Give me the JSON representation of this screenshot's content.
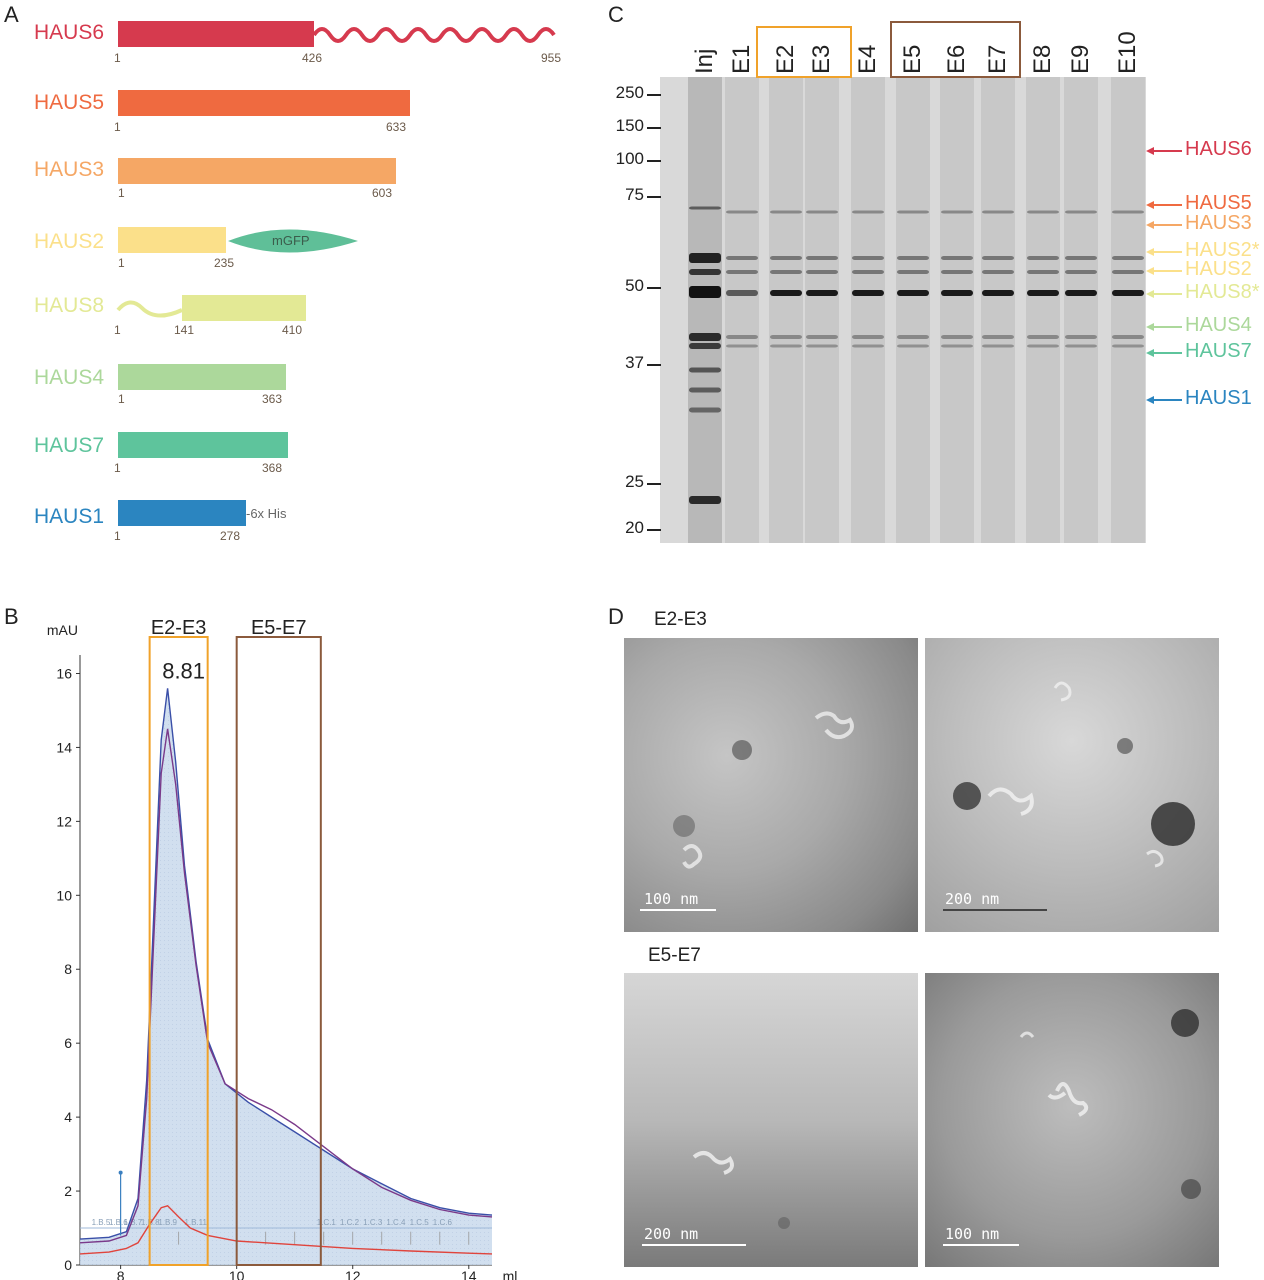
{
  "panels": {
    "a": "A",
    "b": "B",
    "c": "C",
    "d": "D"
  },
  "colors": {
    "haus6": "#d63a4e",
    "haus5": "#ef6a40",
    "haus3": "#f5a765",
    "haus2": "#fbe08a",
    "haus8": "#e3e995",
    "haus4": "#acd89b",
    "haus7": "#5ec49c",
    "haus1": "#2b85c0",
    "mgfp": "#5fbf98",
    "orange_box": "#f0a22a",
    "brown_box": "#8b5a3c"
  },
  "constructs": [
    {
      "name": "HAUS6",
      "start": "1",
      "mid": "426",
      "end": "955"
    },
    {
      "name": "HAUS5",
      "start": "1",
      "end": "633"
    },
    {
      "name": "HAUS3",
      "start": "1",
      "end": "603"
    },
    {
      "name": "HAUS2",
      "start": "1",
      "end": "235",
      "fusion": "mGFP"
    },
    {
      "name": "HAUS8",
      "start": "1",
      "mid": "141",
      "end": "410"
    },
    {
      "name": "HAUS4",
      "start": "1",
      "end": "363"
    },
    {
      "name": "HAUS7",
      "start": "1",
      "end": "368"
    },
    {
      "name": "HAUS1",
      "start": "1",
      "end": "278",
      "tag": "-6x His"
    }
  ],
  "gel": {
    "lanes": [
      "Inj",
      "E1",
      "E2",
      "E3",
      "E4",
      "E5",
      "E6",
      "E7",
      "E8",
      "E9",
      "E10"
    ],
    "markers": [
      "250",
      "150",
      "100",
      "75",
      "50",
      "37",
      "25",
      "20"
    ],
    "bands": [
      {
        "label": "HAUS6",
        "color": "#d63a4e"
      },
      {
        "label": "HAUS5",
        "color": "#ef6a40"
      },
      {
        "label": "HAUS3",
        "color": "#f5a765"
      },
      {
        "label": "HAUS2*",
        "color": "#fbe08a"
      },
      {
        "label": "HAUS2",
        "color": "#fbe08a"
      },
      {
        "label": "HAUS8*",
        "color": "#e3e995"
      },
      {
        "label": "HAUS4",
        "color": "#acd89b"
      },
      {
        "label": "HAUS7",
        "color": "#5ec49c"
      },
      {
        "label": "HAUS1",
        "color": "#2b85c0"
      }
    ]
  },
  "chart_data": {
    "type": "line",
    "title": "",
    "ylabel": "mAU",
    "xlabel": "ml",
    "xlim": [
      7.3,
      14.4
    ],
    "ylim": [
      0,
      16.5
    ],
    "x_ticks": [
      "8",
      "10",
      "12",
      "14"
    ],
    "y_ticks": [
      "0",
      "2",
      "4",
      "6",
      "8",
      "10",
      "12",
      "14",
      "16"
    ],
    "peak_label": "8.81",
    "regions": [
      {
        "label": "E2-E3",
        "x0": 8.5,
        "x1": 9.5
      },
      {
        "label": "E5-E7",
        "x0": 10.0,
        "x1": 11.45
      }
    ],
    "fraction_labels": [
      "1.B.5",
      "1.B.6",
      "1.B.7",
      "1.B.8",
      "1.B.9",
      "1.B.11",
      "1.C.1",
      "1.C.2",
      "1.C.3",
      "1.C.4",
      "1.C.5",
      "1.C.6"
    ],
    "series": [
      {
        "name": "absorbance (blue)",
        "color": "#3a4fa8",
        "x": [
          7.3,
          7.8,
          8.1,
          8.3,
          8.45,
          8.6,
          8.7,
          8.81,
          8.95,
          9.1,
          9.3,
          9.5,
          9.8,
          10.2,
          10.6,
          11.0,
          11.5,
          12.0,
          12.5,
          13.0,
          13.5,
          14.0,
          14.4
        ],
        "values": [
          0.7,
          0.75,
          0.9,
          1.8,
          5.0,
          10.5,
          14.2,
          15.6,
          13.6,
          10.8,
          8.2,
          6.1,
          4.9,
          4.4,
          4.0,
          3.6,
          3.1,
          2.6,
          2.2,
          1.8,
          1.55,
          1.4,
          1.35
        ]
      },
      {
        "name": "absorbance (purple)",
        "color": "#7a3a8a",
        "x": [
          7.3,
          7.8,
          8.1,
          8.3,
          8.45,
          8.6,
          8.7,
          8.81,
          8.95,
          9.1,
          9.3,
          9.5,
          9.8,
          10.2,
          10.6,
          11.0,
          11.5,
          12.0,
          12.5,
          13.0,
          13.5,
          14.0,
          14.4
        ],
        "values": [
          0.6,
          0.65,
          0.8,
          1.6,
          4.5,
          9.8,
          13.3,
          14.5,
          13.0,
          10.6,
          8.1,
          6.0,
          4.9,
          4.5,
          4.2,
          3.8,
          3.2,
          2.6,
          2.1,
          1.75,
          1.5,
          1.35,
          1.3
        ]
      },
      {
        "name": "absorbance (red)",
        "color": "#e0443c",
        "x": [
          7.3,
          7.8,
          8.1,
          8.3,
          8.5,
          8.7,
          8.81,
          9.0,
          9.2,
          9.5,
          10.0,
          11.0,
          12.0,
          13.0,
          14.0,
          14.4
        ],
        "values": [
          0.3,
          0.35,
          0.45,
          0.6,
          1.1,
          1.55,
          1.6,
          1.3,
          1.0,
          0.8,
          0.65,
          0.55,
          0.45,
          0.38,
          0.32,
          0.3
        ]
      }
    ]
  },
  "em": {
    "top_label": "E2-E3",
    "bottom_label": "E5-E7",
    "scale_bars": [
      "100 nm",
      "200 nm",
      "200 nm",
      "100 nm"
    ]
  }
}
